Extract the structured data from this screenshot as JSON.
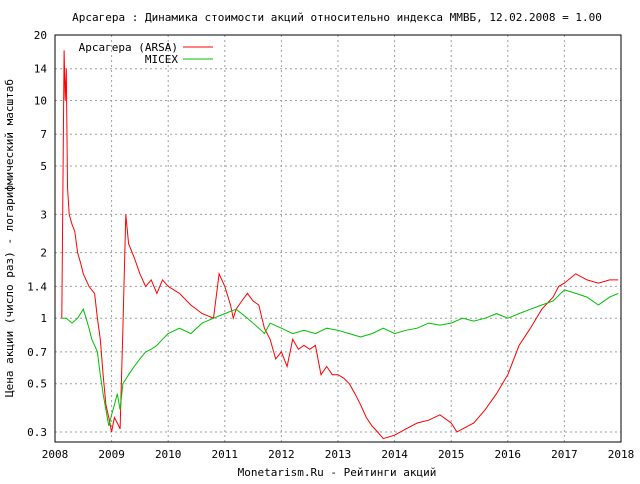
{
  "chart_data": {
    "type": "line",
    "title": "Арсагера : Динамика стоимости акций относительно индекса ММВБ, 12.02.2008 = 1.00",
    "xlabel": "Monetarism.Ru - Рейтинги акций",
    "ylabel": "Цена акции (число раз) - логарифмический масштаб",
    "y_scale": "log",
    "xlim": [
      2008,
      2018
    ],
    "ylim": [
      0.27,
      20
    ],
    "x_ticks": [
      "2008",
      "2009",
      "2010",
      "2011",
      "2012",
      "2013",
      "2014",
      "2015",
      "2016",
      "2017",
      "2018"
    ],
    "y_ticks": [
      "0.3",
      "0.5",
      "0.7",
      "1",
      "1.4",
      "2",
      "3",
      "5",
      "7",
      "10",
      "14",
      "20"
    ],
    "grid": true,
    "legend_position": "top-left",
    "series": [
      {
        "name": "Арсагера (ARSA)",
        "color": "#ff0000",
        "x": [
          2008.12,
          2008.16,
          2008.18,
          2008.2,
          2008.22,
          2008.25,
          2008.3,
          2008.35,
          2008.4,
          2008.45,
          2008.5,
          2008.6,
          2008.7,
          2008.75,
          2008.8,
          2008.85,
          2008.9,
          2008.95,
          2009.0,
          2009.05,
          2009.1,
          2009.15,
          2009.2,
          2009.25,
          2009.3,
          2009.4,
          2009.5,
          2009.6,
          2009.7,
          2009.8,
          2009.9,
          2010.0,
          2010.2,
          2010.4,
          2010.6,
          2010.8,
          2010.9,
          2011.0,
          2011.1,
          2011.15,
          2011.2,
          2011.3,
          2011.4,
          2011.5,
          2011.6,
          2011.7,
          2011.8,
          2011.9,
          2012.0,
          2012.1,
          2012.2,
          2012.3,
          2012.4,
          2012.5,
          2012.6,
          2012.7,
          2012.8,
          2012.9,
          2013.0,
          2013.1,
          2013.2,
          2013.3,
          2013.4,
          2013.5,
          2013.6,
          2013.7,
          2013.8,
          2014.0,
          2014.2,
          2014.4,
          2014.6,
          2014.8,
          2015.0,
          2015.1,
          2015.2,
          2015.4,
          2015.6,
          2015.8,
          2016.0,
          2016.2,
          2016.4,
          2016.6,
          2016.8,
          2016.9,
          2017.0,
          2017.2,
          2017.4,
          2017.6,
          2017.8,
          2017.95
        ],
        "y": [
          1.0,
          17.0,
          10.0,
          14.0,
          4.0,
          3.0,
          2.7,
          2.5,
          2.0,
          1.8,
          1.6,
          1.4,
          1.3,
          1.0,
          0.8,
          0.55,
          0.4,
          0.35,
          0.3,
          0.35,
          0.33,
          0.31,
          0.9,
          3.0,
          2.2,
          1.9,
          1.6,
          1.4,
          1.5,
          1.3,
          1.5,
          1.4,
          1.3,
          1.15,
          1.05,
          1.0,
          1.6,
          1.4,
          1.15,
          1.0,
          1.1,
          1.2,
          1.3,
          1.2,
          1.15,
          0.9,
          0.8,
          0.65,
          0.7,
          0.6,
          0.8,
          0.72,
          0.75,
          0.72,
          0.75,
          0.55,
          0.6,
          0.55,
          0.55,
          0.53,
          0.5,
          0.45,
          0.4,
          0.35,
          0.32,
          0.3,
          0.28,
          0.29,
          0.31,
          0.33,
          0.34,
          0.36,
          0.33,
          0.3,
          0.31,
          0.33,
          0.38,
          0.45,
          0.55,
          0.75,
          0.9,
          1.1,
          1.25,
          1.4,
          1.45,
          1.6,
          1.5,
          1.45,
          1.5,
          1.5
        ]
      },
      {
        "name": "MICEX",
        "color": "#00c000",
        "x": [
          2008.12,
          2008.2,
          2008.3,
          2008.4,
          2008.45,
          2008.5,
          2008.55,
          2008.6,
          2008.65,
          2008.7,
          2008.75,
          2008.8,
          2008.85,
          2008.9,
          2008.95,
          2009.0,
          2009.05,
          2009.1,
          2009.15,
          2009.2,
          2009.3,
          2009.4,
          2009.5,
          2009.6,
          2009.7,
          2009.8,
          2009.9,
          2010.0,
          2010.2,
          2010.4,
          2010.6,
          2010.8,
          2011.0,
          2011.2,
          2011.4,
          2011.6,
          2011.7,
          2011.8,
          2012.0,
          2012.2,
          2012.4,
          2012.6,
          2012.8,
          2013.0,
          2013.2,
          2013.4,
          2013.6,
          2013.8,
          2014.0,
          2014.2,
          2014.4,
          2014.6,
          2014.8,
          2015.0,
          2015.2,
          2015.4,
          2015.6,
          2015.8,
          2016.0,
          2016.2,
          2016.4,
          2016.6,
          2016.8,
          2017.0,
          2017.2,
          2017.4,
          2017.6,
          2017.8,
          2017.95
        ],
        "y": [
          1.0,
          1.0,
          0.95,
          1.0,
          1.05,
          1.1,
          1.0,
          0.9,
          0.8,
          0.75,
          0.7,
          0.55,
          0.45,
          0.38,
          0.32,
          0.36,
          0.4,
          0.45,
          0.38,
          0.5,
          0.55,
          0.6,
          0.65,
          0.7,
          0.72,
          0.75,
          0.8,
          0.85,
          0.9,
          0.85,
          0.95,
          1.0,
          1.05,
          1.1,
          1.0,
          0.9,
          0.85,
          0.95,
          0.9,
          0.85,
          0.88,
          0.85,
          0.9,
          0.88,
          0.85,
          0.82,
          0.85,
          0.9,
          0.85,
          0.88,
          0.9,
          0.95,
          0.93,
          0.95,
          1.0,
          0.97,
          1.0,
          1.05,
          1.0,
          1.05,
          1.1,
          1.15,
          1.2,
          1.35,
          1.3,
          1.25,
          1.15,
          1.25,
          1.3
        ]
      }
    ]
  }
}
